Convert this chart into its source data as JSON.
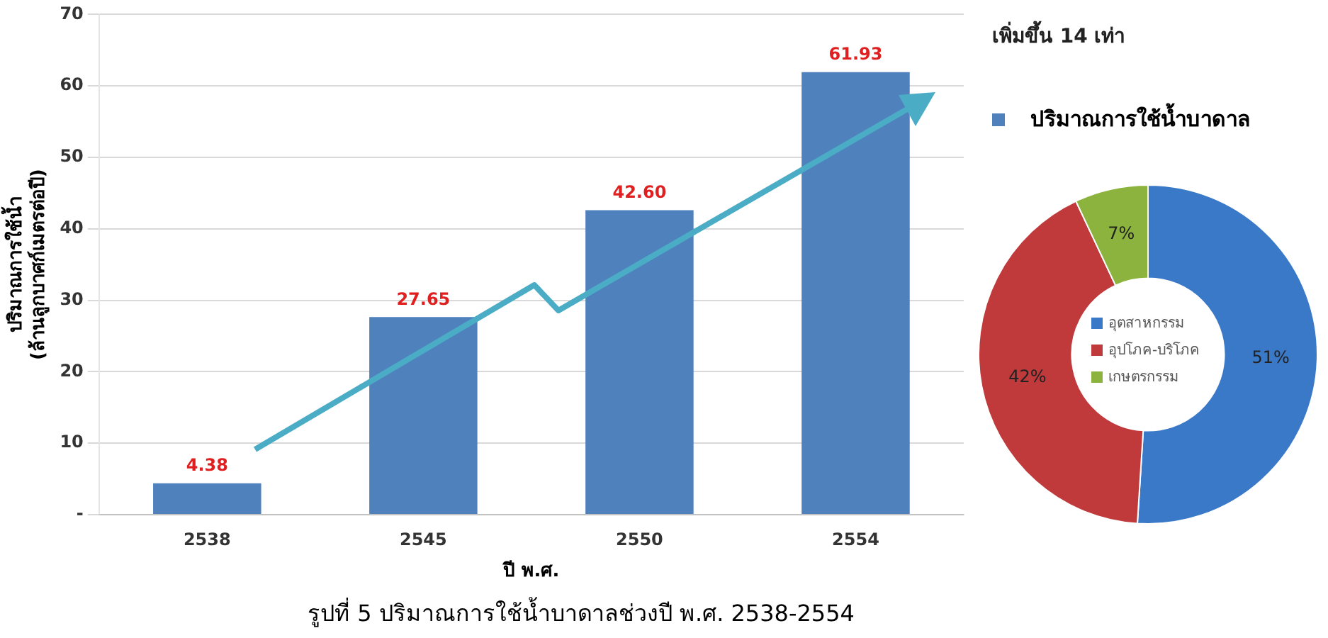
{
  "chart_data": [
    {
      "type": "bar",
      "xlabel": "ปี พ.ศ.",
      "ylabel": "ปริมาณการใช้น้ำ\n(ล้านลูกบาศก์เมตรต่อปี)",
      "categories": [
        "2538",
        "2545",
        "2550",
        "2554"
      ],
      "series": [
        {
          "name": "ปริมาณการใช้น้ำบาดาล",
          "color": "#4f81bd",
          "values": [
            4.38,
            27.65,
            42.6,
            61.93
          ],
          "value_labels": [
            "4.38",
            "27.65",
            "42.60",
            "61.93"
          ]
        }
      ],
      "ylim": [
        0,
        70
      ],
      "yticks": [
        {
          "value": 0,
          "label": "-"
        },
        10,
        20,
        30,
        40,
        50,
        60,
        70
      ],
      "grid": "y",
      "legend": "top right",
      "annotations": [
        "เพิ่มขึ้น 14 เท่า",
        "รูปที่ 5 ปริมาณการใช้น้ำบาดาลช่วงปี พ.ศ. 2538-2554"
      ]
    },
    {
      "type": "donut",
      "categories": [
        "อุตสาหกรรม",
        "อุปโภค-บริโภค",
        "เกษตรกรรม"
      ],
      "values": [
        51,
        42,
        7
      ],
      "colors": [
        "#3a78c8",
        "#c0393b",
        "#8db33f"
      ],
      "value_labels": [
        "51%",
        "42%",
        "7%"
      ],
      "legend": "center"
    }
  ]
}
